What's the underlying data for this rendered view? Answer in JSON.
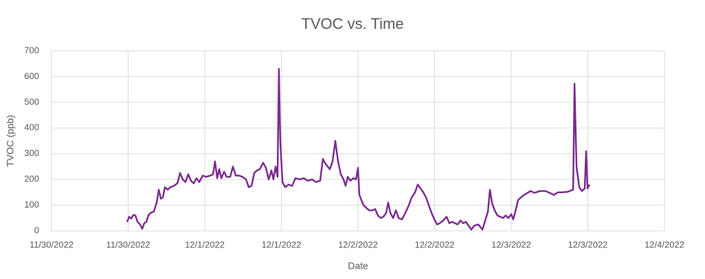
{
  "chart_data": {
    "type": "line",
    "title": "TVOC vs. Time",
    "x_label": "Date",
    "y_label": "TVOC (ppb)",
    "color": "#7b2c8f",
    "grid": true,
    "xlim": [
      0,
      4
    ],
    "ylim": [
      0,
      700
    ],
    "xticks": [
      {
        "value": 0,
        "label": "11/30/2022"
      },
      {
        "value": 0.5,
        "label": "11/30/2022"
      },
      {
        "value": 1,
        "label": "12/1/2022"
      },
      {
        "value": 1.5,
        "label": "12/1/2022"
      },
      {
        "value": 2,
        "label": "12/2/2022"
      },
      {
        "value": 2.5,
        "label": "12/2/2022"
      },
      {
        "value": 3,
        "label": "12/3/2022"
      },
      {
        "value": 3.5,
        "label": "12/3/2022"
      },
      {
        "value": 4,
        "label": "12/4/2022"
      }
    ],
    "yticks": [
      0,
      100,
      200,
      300,
      400,
      500,
      600,
      700
    ],
    "x": [
      0.493,
      0.507,
      0.52,
      0.534,
      0.547,
      0.561,
      0.578,
      0.592,
      0.605,
      0.619,
      0.632,
      0.646,
      0.668,
      0.686,
      0.7,
      0.713,
      0.726,
      0.74,
      0.758,
      0.776,
      0.798,
      0.821,
      0.839,
      0.857,
      0.874,
      0.892,
      0.91,
      0.928,
      0.946,
      0.964,
      0.987,
      1.009,
      1.036,
      1.054,
      1.067,
      1.081,
      1.094,
      1.108,
      1.126,
      1.143,
      1.166,
      1.184,
      1.202,
      1.224,
      1.247,
      1.269,
      1.287,
      1.305,
      1.323,
      1.341,
      1.359,
      1.381,
      1.399,
      1.417,
      1.435,
      1.448,
      1.462,
      1.475,
      1.484,
      1.493,
      1.507,
      1.525,
      1.547,
      1.57,
      1.592,
      1.619,
      1.646,
      1.673,
      1.7,
      1.726,
      1.753,
      1.771,
      1.789,
      1.816,
      1.834,
      1.852,
      1.87,
      1.888,
      1.906,
      1.919,
      1.933,
      1.951,
      1.969,
      1.987,
      2.0,
      2.009,
      2.022,
      2.036,
      2.054,
      2.072,
      2.094,
      2.112,
      2.13,
      2.148,
      2.166,
      2.184,
      2.197,
      2.211,
      2.229,
      2.247,
      2.265,
      2.287,
      2.309,
      2.332,
      2.35,
      2.372,
      2.39,
      2.408,
      2.426,
      2.444,
      2.462,
      2.48,
      2.498,
      2.516,
      2.534,
      2.556,
      2.578,
      2.596,
      2.614,
      2.632,
      2.65,
      2.668,
      2.686,
      2.704,
      2.722,
      2.74,
      2.758,
      2.785,
      2.812,
      2.83,
      2.848,
      2.861,
      2.874,
      2.892,
      2.91,
      2.928,
      2.946,
      2.964,
      2.982,
      3.0,
      3.013,
      3.027,
      3.045,
      3.072,
      3.099,
      3.126,
      3.152,
      3.188,
      3.224,
      3.251,
      3.278,
      3.305,
      3.332,
      3.368,
      3.404,
      3.413,
      3.426,
      3.444,
      3.462,
      3.48,
      3.489,
      3.498,
      3.511
    ],
    "values": [
      35,
      55,
      48,
      62,
      60,
      35,
      25,
      8,
      30,
      35,
      60,
      70,
      75,
      110,
      160,
      125,
      130,
      170,
      160,
      170,
      175,
      185,
      225,
      200,
      190,
      220,
      195,
      185,
      205,
      190,
      215,
      210,
      215,
      220,
      270,
      205,
      240,
      205,
      230,
      210,
      210,
      250,
      215,
      215,
      210,
      200,
      170,
      175,
      225,
      235,
      240,
      265,
      245,
      200,
      235,
      200,
      250,
      210,
      630,
      350,
      190,
      170,
      180,
      175,
      205,
      200,
      205,
      195,
      200,
      190,
      195,
      280,
      260,
      240,
      270,
      350,
      270,
      220,
      200,
      175,
      210,
      195,
      205,
      200,
      245,
      140,
      120,
      100,
      90,
      80,
      80,
      85,
      60,
      50,
      55,
      70,
      110,
      70,
      50,
      80,
      50,
      45,
      70,
      100,
      130,
      150,
      180,
      165,
      150,
      130,
      100,
      70,
      45,
      25,
      30,
      40,
      55,
      30,
      35,
      30,
      25,
      40,
      30,
      35,
      20,
      5,
      20,
      25,
      5,
      40,
      75,
      160,
      110,
      80,
      60,
      55,
      50,
      60,
      50,
      65,
      45,
      75,
      120,
      135,
      145,
      155,
      148,
      155,
      155,
      148,
      140,
      150,
      150,
      152,
      160,
      572,
      250,
      170,
      155,
      165,
      310,
      165,
      180
    ]
  }
}
